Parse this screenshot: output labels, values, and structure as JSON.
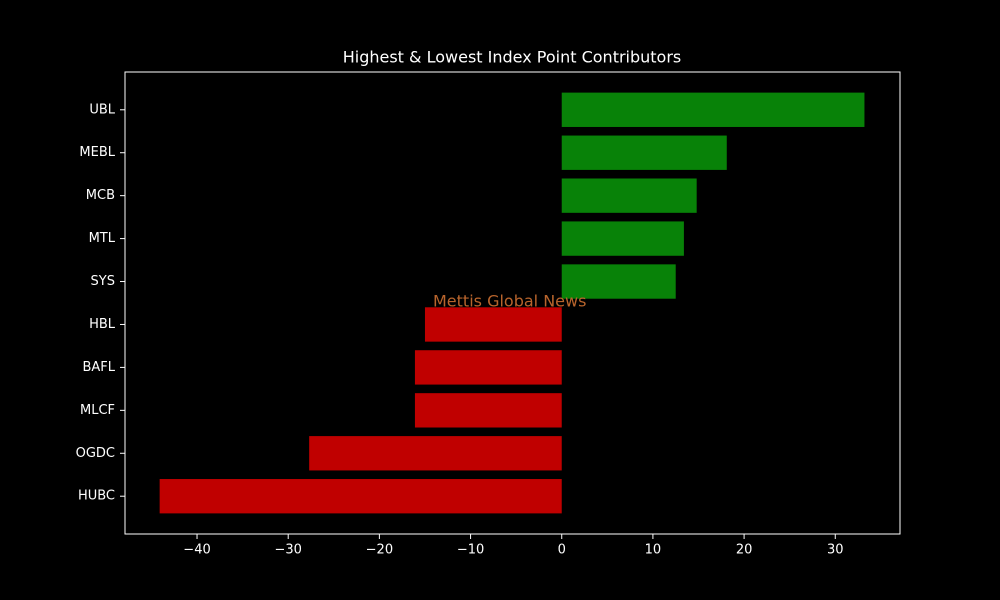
{
  "chart_data": {
    "type": "barh",
    "title": "Highest & Lowest Index Point Contributors",
    "annotation": "Mettis Global News",
    "categories": [
      "UBL",
      "MEBL",
      "MCB",
      "MTL",
      "SYS",
      "HBL",
      "BAFL",
      "MLCF",
      "OGDC",
      "HUBC"
    ],
    "values": [
      33.2,
      18.1,
      14.8,
      13.4,
      12.5,
      -15.0,
      -16.1,
      -16.1,
      -27.7,
      -44.1
    ],
    "colors": [
      "#088208",
      "#088208",
      "#088208",
      "#088208",
      "#088208",
      "#c00000",
      "#c00000",
      "#c00000",
      "#c00000",
      "#c00000"
    ],
    "xlim": [
      -47.9,
      37.1
    ],
    "xticks": [
      {
        "value": -40,
        "label": "−40"
      },
      {
        "value": -30,
        "label": "−30"
      },
      {
        "value": -20,
        "label": "−20"
      },
      {
        "value": -10,
        "label": "−10"
      },
      0,
      10,
      20,
      30
    ]
  }
}
